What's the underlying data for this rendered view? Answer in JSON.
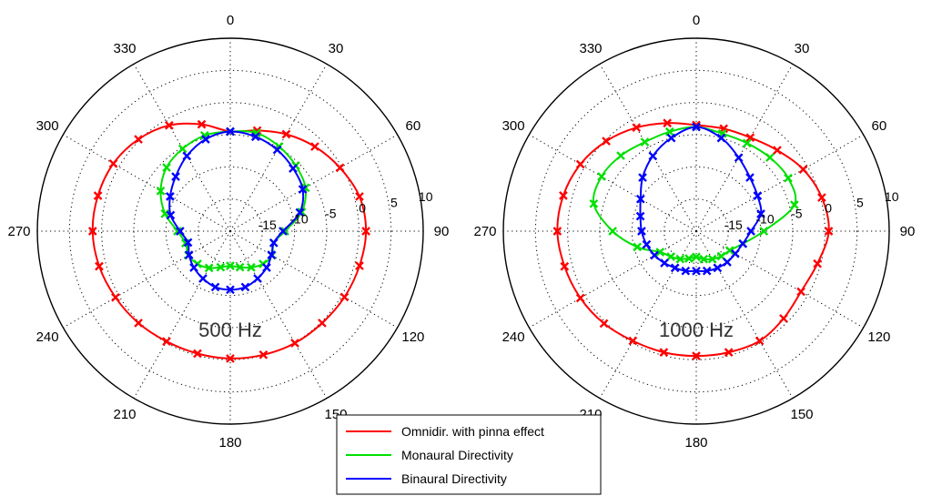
{
  "colors": {
    "background": "#ffffff",
    "axis": "#000000",
    "grid": "#000000",
    "series": {
      "Omnidir. with pinna effect": "#ff0000",
      "Monaural Directivity": "#00e000",
      "Binaural Directivity": "#0000ff"
    }
  },
  "legend": {
    "items": [
      "Omnidir. with pinna effect",
      "Monaural Directivity",
      "Binaural Directivity"
    ]
  },
  "chart_data": [
    {
      "type": "polar-line",
      "title": "500 Hz",
      "angle_unit": "deg",
      "angle_direction": "clockwise",
      "zero_at": "top",
      "angle_ticks": [
        0,
        30,
        60,
        90,
        120,
        150,
        180,
        210,
        240,
        270,
        300,
        330
      ],
      "radial_tick_labels": [
        "-15",
        "-10",
        "-5",
        "0",
        "5",
        "10"
      ],
      "radial_range_db": [
        -20,
        10
      ],
      "grid": true,
      "series": [
        {
          "name": "Omnidir. with pinna effect",
          "marker": "x",
          "theta": [
            0,
            15,
            30,
            45,
            60,
            75,
            90,
            105,
            120,
            135,
            150,
            165,
            180,
            195,
            210,
            225,
            240,
            255,
            270,
            285,
            300,
            315,
            330,
            345
          ],
          "r_db": [
            -4.5,
            -3.8,
            -2.6,
            -1.4,
            -0.3,
            0.8,
            1.1,
            0.8,
            0.5,
            0.2,
            0.1,
            -0.1,
            -0.2,
            -0.3,
            -0.2,
            0.2,
            0.6,
            1.1,
            1.4,
            1.3,
            1.0,
            0.2,
            -1.0,
            -2.8
          ]
        },
        {
          "name": "Monaural Directivity",
          "marker": "x",
          "theta": [
            0,
            15,
            30,
            45,
            60,
            75,
            90,
            105,
            120,
            135,
            150,
            165,
            180,
            195,
            210,
            225,
            240,
            255,
            270,
            285,
            300,
            315,
            330,
            345
          ],
          "r_db": [
            -4.5,
            -4.2,
            -4.8,
            -5.6,
            -6.5,
            -8.5,
            -11.5,
            -13,
            -12.5,
            -12.8,
            -13.5,
            -14.2,
            -14.6,
            -14.2,
            -13.4,
            -12.8,
            -12.5,
            -12.8,
            -11.8,
            -9.5,
            -7.5,
            -6.0,
            -5.2,
            -4.6
          ]
        },
        {
          "name": "Binaural Directivity",
          "marker": "x",
          "theta": [
            0,
            15,
            30,
            45,
            60,
            75,
            90,
            105,
            120,
            135,
            150,
            165,
            180,
            195,
            210,
            225,
            240,
            255,
            270,
            285,
            300,
            315,
            330,
            345
          ],
          "r_db": [
            -4.5,
            -4.8,
            -5.4,
            -6.2,
            -7.0,
            -8.8,
            -11.8,
            -13,
            -12.6,
            -12.0,
            -11.5,
            -11.0,
            -10.9,
            -11.0,
            -11.5,
            -12.0,
            -12.6,
            -13.2,
            -12.2,
            -10.4,
            -9.2,
            -8.0,
            -6.5,
            -5.2
          ]
        }
      ]
    },
    {
      "type": "polar-line",
      "title": "1000 Hz",
      "angle_unit": "deg",
      "angle_direction": "clockwise",
      "zero_at": "top",
      "angle_ticks": [
        0,
        30,
        60,
        90,
        120,
        150,
        180,
        210,
        240,
        270,
        300,
        330
      ],
      "radial_tick_labels": [
        "-15",
        "-10",
        "-5",
        "0",
        "5",
        "10"
      ],
      "radial_range_db": [
        -20,
        10
      ],
      "grid": true,
      "series": [
        {
          "name": "Omnidir. with pinna effect",
          "marker": "x",
          "theta": [
            0,
            15,
            30,
            45,
            60,
            75,
            90,
            105,
            120,
            135,
            150,
            165,
            180,
            195,
            210,
            225,
            240,
            255,
            270,
            285,
            300,
            315,
            330,
            345
          ],
          "r_db": [
            -3.5,
            -3.5,
            -3.2,
            -2.2,
            -0.8,
            0.2,
            0.6,
            -0.5,
            -1.2,
            -0.8,
            -0.3,
            -0.5,
            -0.6,
            -0.5,
            -0.3,
            0.3,
            0.8,
            1.2,
            1.6,
            1.4,
            0.8,
            -0.2,
            -1.4,
            -2.6
          ]
        },
        {
          "name": "Monaural Directivity",
          "marker": "x",
          "theta": [
            0,
            15,
            30,
            45,
            60,
            75,
            90,
            105,
            120,
            135,
            150,
            165,
            180,
            195,
            210,
            225,
            240,
            255,
            270,
            285,
            300,
            315,
            330,
            345
          ],
          "r_db": [
            -3.8,
            -4.3,
            -4.2,
            -3.8,
            -3.5,
            -4.2,
            -9.5,
            -12.5,
            -14.0,
            -14.5,
            -15.0,
            -15.5,
            -16.0,
            -15.6,
            -15.0,
            -14.4,
            -13.5,
            -10.5,
            -7.0,
            -3.5,
            -3.0,
            -3.4,
            -4.0,
            -4.0
          ]
        },
        {
          "name": "Binaural Directivity",
          "marker": "x",
          "theta": [
            0,
            15,
            30,
            45,
            60,
            75,
            90,
            105,
            120,
            135,
            150,
            165,
            180,
            195,
            210,
            225,
            240,
            255,
            270,
            285,
            300,
            315,
            330,
            345
          ],
          "r_db": [
            -3.8,
            -5.0,
            -6.8,
            -8.2,
            -9.0,
            -9.6,
            -11.5,
            -12.5,
            -13.0,
            -13.2,
            -13.4,
            -13.6,
            -13.8,
            -13.6,
            -13.4,
            -13.0,
            -12.5,
            -12.0,
            -11.5,
            -11.0,
            -10.0,
            -8.2,
            -6.5,
            -5.0
          ]
        }
      ]
    }
  ]
}
